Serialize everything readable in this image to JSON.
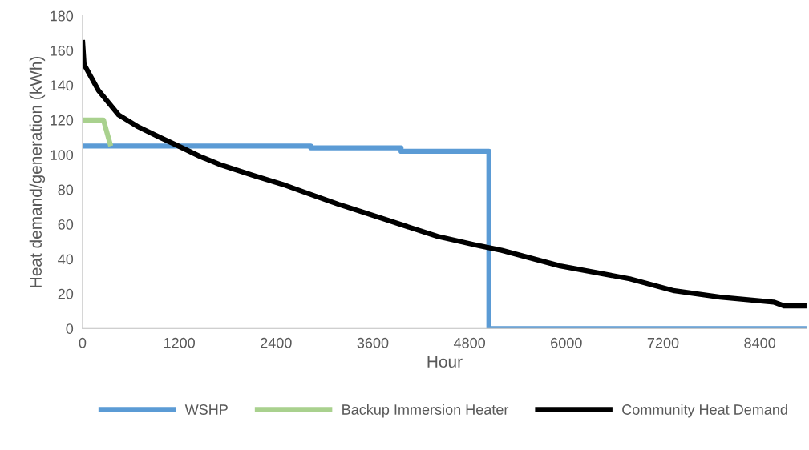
{
  "chart_data": {
    "type": "line",
    "xlabel": "Hour",
    "ylabel": "Heat demand/generation (kWh)",
    "xlim": [
      0,
      8980
    ],
    "xticks": [
      0,
      1200,
      2400,
      3600,
      4800,
      6000,
      7200,
      8400
    ],
    "ylim": [
      0,
      180
    ],
    "yticks": [
      0,
      20,
      40,
      60,
      80,
      100,
      120,
      140,
      160,
      180
    ],
    "grid": false,
    "legend": "bottom",
    "marker": "none",
    "line_style": "solid",
    "series": [
      {
        "name": "WSHP",
        "color": "#5b9bd5",
        "x": [
          0,
          2830,
          2830,
          3950,
          3950,
          5040,
          5040,
          8980
        ],
        "values": [
          105,
          105,
          104,
          104,
          102,
          102,
          0,
          0
        ]
      },
      {
        "name": "Backup Immersion Heater",
        "color": "#a9d18e",
        "x": [
          0,
          260,
          350
        ],
        "values": [
          120,
          120,
          105
        ]
      },
      {
        "name": "Community Heat Demand",
        "color": "#000000",
        "x": [
          0,
          20,
          198,
          446,
          694,
          962,
          1190,
          1458,
          1726,
          2123,
          2480,
          2748,
          3175,
          3740,
          4405,
          4931,
          5198,
          5923,
          6786,
          7341,
          7907,
          8571,
          8700,
          8980
        ],
        "values": [
          166,
          152,
          137,
          123,
          116,
          110,
          105,
          99,
          94,
          88,
          83,
          78.5,
          71.5,
          63,
          53,
          47.5,
          45,
          36,
          28.6,
          21.7,
          18,
          15.2,
          13,
          13
        ]
      }
    ]
  }
}
